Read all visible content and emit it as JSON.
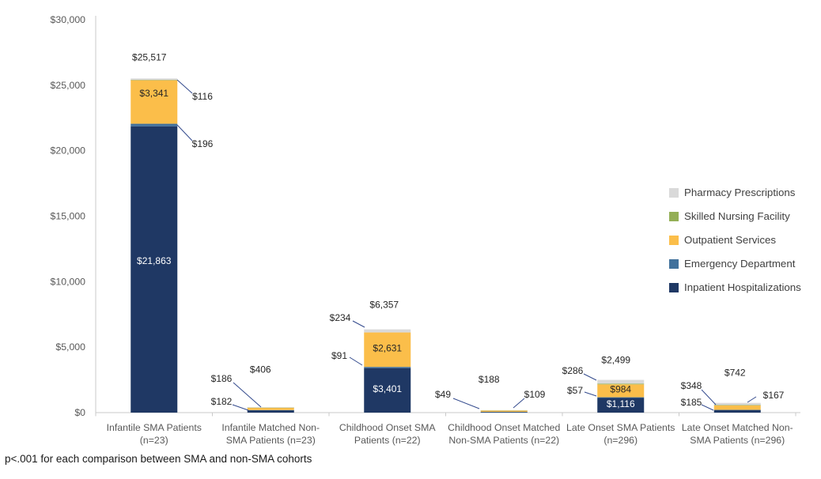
{
  "chart_data": {
    "type": "bar",
    "stacked": true,
    "title": "",
    "footnote": "p<.001 for each comparison between SMA and non-SMA cohorts",
    "axis_color": "#C9C9C9",
    "annotation_line_color": "#334A8D",
    "y_axis": {
      "min": 0,
      "max": 30000,
      "step": 5000,
      "ticks": [
        "$30,000",
        "$25,000",
        "$20,000",
        "$15,000",
        "$10,000",
        "$5,000",
        "$0"
      ]
    },
    "series_order": [
      "inpatient",
      "emergency",
      "outpatient",
      "snf",
      "pharmacy"
    ],
    "legend": [
      {
        "key": "pharmacy",
        "label": "Pharmacy Prescriptions",
        "color": "#D9D9D9"
      },
      {
        "key": "snf",
        "label": "Skilled Nursing Facility",
        "color": "#94AF56"
      },
      {
        "key": "outpatient",
        "label": "Outpatient Services",
        "color": "#FBBE4A"
      },
      {
        "key": "emergency",
        "label": "Emergency Department",
        "color": "#41719C"
      },
      {
        "key": "inpatient",
        "label": "Inpatient Hospitalizations",
        "color": "#1F3864"
      }
    ],
    "bars": [
      {
        "category_lines": [
          "Infantile SMA Patients",
          "(n=23)"
        ],
        "total_label": "$25,517",
        "segments": {
          "inpatient": 21863,
          "emergency": 196,
          "outpatient": 3341,
          "snf": 1,
          "pharmacy": 116
        },
        "inside_labels": [
          {
            "segment": "outpatient",
            "text": "$3,341",
            "tone": "dark"
          },
          {
            "segment": "inpatient",
            "text": "$21,863",
            "tone": "light"
          }
        ],
        "callouts": [
          {
            "text": "$116",
            "segment": "pharmacy"
          },
          {
            "text": "$196",
            "segment": "emergency"
          }
        ]
      },
      {
        "category_lines": [
          "Infantile Matched Non-",
          "SMA Patients (n=23)"
        ],
        "total_label": "$406",
        "segments": {
          "inpatient": 182,
          "emergency": 12,
          "outpatient": 186,
          "snf": 6,
          "pharmacy": 20
        },
        "inside_labels": [],
        "callouts": [
          {
            "text": "$186",
            "segment": "outpatient"
          },
          {
            "text": "$182",
            "segment": "inpatient"
          }
        ]
      },
      {
        "category_lines": [
          "Childhood Onset SMA",
          "Patients (n=22)"
        ],
        "total_label": "$6,357",
        "segments": {
          "inpatient": 3401,
          "emergency": 91,
          "outpatient": 2631,
          "snf": 0,
          "pharmacy": 234
        },
        "inside_labels": [
          {
            "segment": "outpatient",
            "text": "$2,631",
            "tone": "dark"
          },
          {
            "segment": "inpatient",
            "text": "$3,401",
            "tone": "light"
          }
        ],
        "callouts": [
          {
            "text": "$234",
            "segment": "pharmacy"
          },
          {
            "text": "$91",
            "segment": "emergency"
          }
        ]
      },
      {
        "category_lines": [
          "Childhood Onset Matched",
          "Non-SMA Patients (n=22)"
        ],
        "total_label": "$188",
        "segments": {
          "inpatient": 49,
          "emergency": 10,
          "outpatient": 109,
          "snf": 6,
          "pharmacy": 14
        },
        "inside_labels": [],
        "callouts": [
          {
            "text": "$49",
            "segment": "inpatient"
          },
          {
            "text": "$109",
            "segment": "outpatient"
          }
        ]
      },
      {
        "category_lines": [
          "Late Onset SMA Patients",
          "(n=296)"
        ],
        "total_label": "$2,499",
        "segments": {
          "inpatient": 1116,
          "emergency": 57,
          "outpatient": 984,
          "snf": 56,
          "pharmacy": 286
        },
        "inside_labels": [
          {
            "segment": "outpatient",
            "text": "$984",
            "tone": "dark"
          },
          {
            "segment": "inpatient",
            "text": "$1,116",
            "tone": "light"
          }
        ],
        "callouts": [
          {
            "text": "$286",
            "segment": "pharmacy"
          },
          {
            "text": "$57",
            "segment": "emergency"
          }
        ]
      },
      {
        "category_lines": [
          "Late Onset Matched Non-",
          "SMA Patients (n=296)"
        ],
        "total_label": "$742",
        "segments": {
          "inpatient": 185,
          "emergency": 25,
          "outpatient": 348,
          "snf": 17,
          "pharmacy": 167
        },
        "inside_labels": [],
        "callouts": [
          {
            "text": "$348",
            "segment": "outpatient"
          },
          {
            "text": "$185",
            "segment": "inpatient"
          },
          {
            "text": "$167",
            "segment": "pharmacy"
          }
        ]
      }
    ]
  }
}
